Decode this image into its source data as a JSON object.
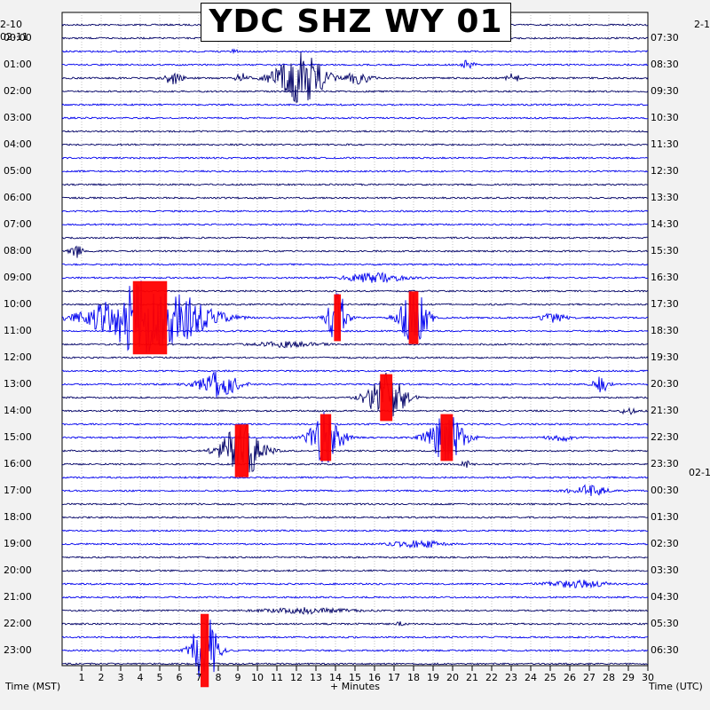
{
  "title": "YDC SHZ WY 01",
  "labels": {
    "left_date_top": "2-10",
    "left_date": "02-11",
    "right_date_top": "2-1",
    "right_date_mid": "02-1",
    "xlabel": "+ Minutes",
    "left_axis_title": "Time (MST)",
    "right_axis_title": "Time (UTC)"
  },
  "colors": {
    "trace_dark": "#000066",
    "trace_blue": "#0000ee",
    "clip": "#ff0000",
    "grid": "#9a9a9a",
    "background": "#f2f2f2"
  },
  "chart_data": {
    "type": "seismogram-helicorder",
    "station": "YDC SHZ WY 01",
    "x_ticks": [
      1,
      2,
      3,
      4,
      5,
      6,
      7,
      8,
      9,
      10,
      11,
      12,
      13,
      14,
      15,
      16,
      17,
      18,
      19,
      20,
      21,
      22,
      23,
      24,
      25,
      26,
      27,
      28,
      29,
      30
    ],
    "xlim": [
      0,
      30
    ],
    "traces_per_hour": 2,
    "trace_count": 49,
    "left_time_labels": [
      "00:00",
      "01:00",
      "02:00",
      "03:00",
      "04:00",
      "05:00",
      "06:00",
      "07:00",
      "08:00",
      "09:00",
      "10:00",
      "11:00",
      "12:00",
      "13:00",
      "14:00",
      "15:00",
      "16:00",
      "17:00",
      "18:00",
      "19:00",
      "20:00",
      "21:00",
      "22:00",
      "23:00"
    ],
    "right_time_labels": [
      "07:30",
      "08:30",
      "09:30",
      "10:30",
      "11:30",
      "12:30",
      "13:30",
      "14:30",
      "15:30",
      "16:30",
      "17:30",
      "18:30",
      "19:30",
      "20:30",
      "21:30",
      "22:30",
      "23:30",
      "00:30",
      "01:30",
      "02:30",
      "03:30",
      "04:30",
      "05:30",
      "06:30"
    ],
    "events": [
      {
        "trace": 2,
        "minute": 8.8,
        "amp": 0.08,
        "width": 0.2
      },
      {
        "trace": 3,
        "minute": 20.8,
        "amp": 0.25,
        "width": 0.3
      },
      {
        "trace": 4,
        "minute": 5.6,
        "amp": 0.35,
        "width": 0.5
      },
      {
        "trace": 4,
        "minute": 9.2,
        "amp": 0.25,
        "width": 0.3
      },
      {
        "trace": 4,
        "minute": 12.2,
        "amp": 1.4,
        "width": 1.2
      },
      {
        "trace": 4,
        "minute": 15.2,
        "amp": 0.35,
        "width": 0.6
      },
      {
        "trace": 4,
        "minute": 23.1,
        "amp": 0.25,
        "width": 0.3
      },
      {
        "trace": 17,
        "minute": 0.7,
        "amp": 0.35,
        "width": 0.3
      },
      {
        "trace": 19,
        "minute": 16.0,
        "amp": 0.25,
        "width": 1.4
      },
      {
        "trace": 22,
        "minute": 25.2,
        "amp": 0.25,
        "width": 0.6
      },
      {
        "trace": 22,
        "minute": 4.5,
        "amp": 2.5,
        "width": 2.5,
        "clip": true
      },
      {
        "trace": 22,
        "minute": 14.1,
        "amp": 1.6,
        "width": 0.5,
        "clip": true
      },
      {
        "trace": 22,
        "minute": 18.0,
        "amp": 1.8,
        "width": 0.7,
        "clip": true
      },
      {
        "trace": 24,
        "minute": 11.5,
        "amp": 0.15,
        "width": 1.5
      },
      {
        "trace": 27,
        "minute": 8.0,
        "amp": 0.7,
        "width": 1.0
      },
      {
        "trace": 27,
        "minute": 27.6,
        "amp": 0.4,
        "width": 0.4
      },
      {
        "trace": 28,
        "minute": 16.6,
        "amp": 1.6,
        "width": 0.9,
        "clip": true
      },
      {
        "trace": 29,
        "minute": 29.0,
        "amp": 0.25,
        "width": 0.3
      },
      {
        "trace": 31,
        "minute": 13.5,
        "amp": 1.6,
        "width": 0.8,
        "clip": true
      },
      {
        "trace": 31,
        "minute": 19.7,
        "amp": 1.6,
        "width": 0.9,
        "clip": true
      },
      {
        "trace": 31,
        "minute": 25.5,
        "amp": 0.2,
        "width": 0.6
      },
      {
        "trace": 32,
        "minute": 9.2,
        "amp": 1.8,
        "width": 1.0,
        "clip": true
      },
      {
        "trace": 33,
        "minute": 20.7,
        "amp": 0.15,
        "width": 0.3
      },
      {
        "trace": 35,
        "minute": 27.0,
        "amp": 0.3,
        "width": 0.9
      },
      {
        "trace": 39,
        "minute": 18.2,
        "amp": 0.2,
        "width": 1.2
      },
      {
        "trace": 42,
        "minute": 26.4,
        "amp": 0.2,
        "width": 1.5
      },
      {
        "trace": 44,
        "minute": 12.5,
        "amp": 0.15,
        "width": 2.0
      },
      {
        "trace": 45,
        "minute": 17.3,
        "amp": 0.1,
        "width": 0.2
      },
      {
        "trace": 47,
        "minute": 7.3,
        "amp": 2.5,
        "width": 0.6,
        "clip": true
      }
    ]
  }
}
